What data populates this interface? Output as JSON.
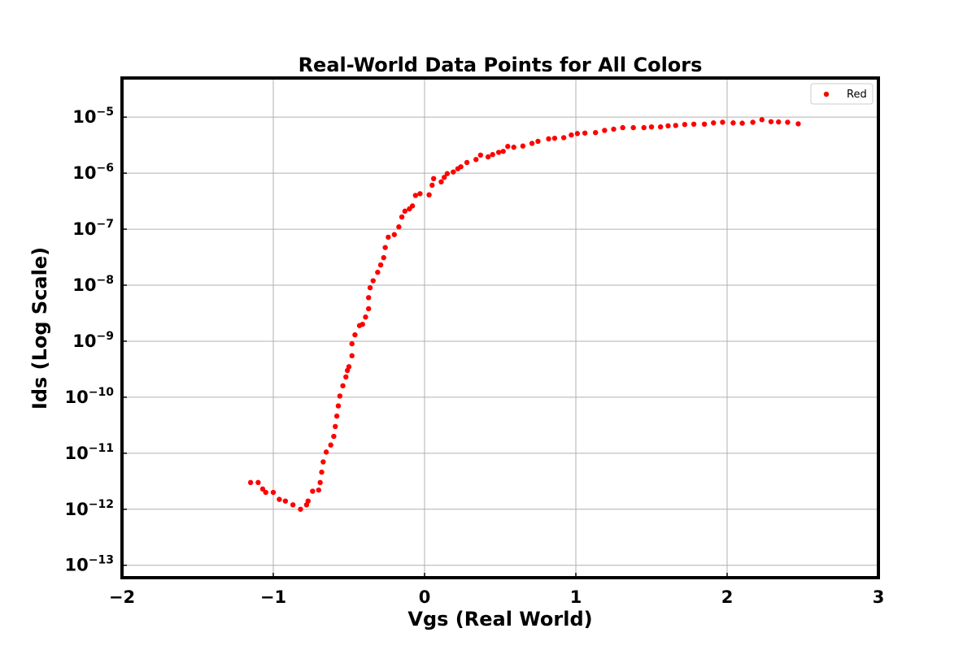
{
  "chart_data": {
    "type": "scatter",
    "title": "Real-World Data Points for All Colors",
    "xlabel": "Vgs (Real World)",
    "ylabel": "Ids (Log Scale)",
    "xlim": [
      -2,
      3
    ],
    "ylim": [
      6e-14,
      5e-05
    ],
    "yscale": "log",
    "grid": true,
    "legend_position": "top-right",
    "x_ticks": [
      -2,
      -1,
      0,
      1,
      2,
      3
    ],
    "x_tick_labels": [
      "−2",
      "−1",
      "0",
      "1",
      "2",
      "3"
    ],
    "y_ticks": [
      {
        "value": 1e-13,
        "base": "10",
        "exp": "−13"
      },
      {
        "value": 1e-12,
        "base": "10",
        "exp": "−12"
      },
      {
        "value": 1e-11,
        "base": "10",
        "exp": "−11"
      },
      {
        "value": 1e-10,
        "base": "10",
        "exp": "−10"
      },
      {
        "value": 1e-09,
        "base": "10",
        "exp": "−9"
      },
      {
        "value": 1e-08,
        "base": "10",
        "exp": "−8"
      },
      {
        "value": 1e-07,
        "base": "10",
        "exp": "−7"
      },
      {
        "value": 1e-06,
        "base": "10",
        "exp": "−6"
      },
      {
        "value": 1e-05,
        "base": "10",
        "exp": "−5"
      }
    ],
    "series": [
      {
        "name": "Red",
        "color": "#ff0000",
        "points": [
          [
            -1.15,
            3e-12
          ],
          [
            -1.1,
            3e-12
          ],
          [
            -1.07,
            2.3e-12
          ],
          [
            -1.05,
            2e-12
          ],
          [
            -1.0,
            2e-12
          ],
          [
            -0.96,
            1.5e-12
          ],
          [
            -0.92,
            1.4e-12
          ],
          [
            -0.87,
            1.2e-12
          ],
          [
            -0.82,
            1e-12
          ],
          [
            -0.78,
            1.2e-12
          ],
          [
            -0.77,
            1.4e-12
          ],
          [
            -0.74,
            2.1e-12
          ],
          [
            -0.7,
            2.2e-12
          ],
          [
            -0.69,
            3e-12
          ],
          [
            -0.68,
            4.6e-12
          ],
          [
            -0.67,
            7e-12
          ],
          [
            -0.65,
            1.05e-11
          ],
          [
            -0.62,
            1.4e-11
          ],
          [
            -0.6,
            2e-11
          ],
          [
            -0.59,
            3e-11
          ],
          [
            -0.58,
            4.6e-11
          ],
          [
            -0.57,
            7e-11
          ],
          [
            -0.56,
            1.05e-10
          ],
          [
            -0.54,
            1.6e-10
          ],
          [
            -0.52,
            2.3e-10
          ],
          [
            -0.51,
            3e-10
          ],
          [
            -0.5,
            3.5e-10
          ],
          [
            -0.48,
            5.5e-10
          ],
          [
            -0.48,
            9e-10
          ],
          [
            -0.46,
            1.3e-09
          ],
          [
            -0.43,
            1.9e-09
          ],
          [
            -0.41,
            2e-09
          ],
          [
            -0.39,
            2.7e-09
          ],
          [
            -0.37,
            3.8e-09
          ],
          [
            -0.37,
            6e-09
          ],
          [
            -0.36,
            9e-09
          ],
          [
            -0.34,
            1.2e-08
          ],
          [
            -0.31,
            1.7e-08
          ],
          [
            -0.29,
            2.3e-08
          ],
          [
            -0.27,
            3.1e-08
          ],
          [
            -0.26,
            4.7e-08
          ],
          [
            -0.24,
            7.2e-08
          ],
          [
            -0.2,
            8e-08
          ],
          [
            -0.17,
            1.1e-07
          ],
          [
            -0.15,
            1.65e-07
          ],
          [
            -0.13,
            2.1e-07
          ],
          [
            -0.1,
            2.3e-07
          ],
          [
            -0.08,
            2.6e-07
          ],
          [
            -0.06,
            4e-07
          ],
          [
            -0.03,
            4.3e-07
          ],
          [
            0.03,
            4.1e-07
          ],
          [
            0.05,
            6.1e-07
          ],
          [
            0.06,
            8e-07
          ],
          [
            0.11,
            7e-07
          ],
          [
            0.13,
            8.4e-07
          ],
          [
            0.15,
            9.8e-07
          ],
          [
            0.19,
            1.05e-06
          ],
          [
            0.22,
            1.2e-06
          ],
          [
            0.24,
            1.3e-06
          ],
          [
            0.28,
            1.55e-06
          ],
          [
            0.34,
            1.75e-06
          ],
          [
            0.37,
            2.1e-06
          ],
          [
            0.42,
            1.95e-06
          ],
          [
            0.45,
            2.15e-06
          ],
          [
            0.49,
            2.35e-06
          ],
          [
            0.52,
            2.45e-06
          ],
          [
            0.55,
            3e-06
          ],
          [
            0.59,
            2.9e-06
          ],
          [
            0.65,
            3.05e-06
          ],
          [
            0.71,
            3.4e-06
          ],
          [
            0.75,
            3.7e-06
          ],
          [
            0.82,
            4.1e-06
          ],
          [
            0.86,
            4.2e-06
          ],
          [
            0.92,
            4.3e-06
          ],
          [
            0.97,
            4.8e-06
          ],
          [
            1.01,
            5.1e-06
          ],
          [
            1.06,
            5.2e-06
          ],
          [
            1.13,
            5.3e-06
          ],
          [
            1.19,
            5.8e-06
          ],
          [
            1.25,
            6.1e-06
          ],
          [
            1.31,
            6.5e-06
          ],
          [
            1.38,
            6.5e-06
          ],
          [
            1.45,
            6.5e-06
          ],
          [
            1.5,
            6.7e-06
          ],
          [
            1.56,
            6.7e-06
          ],
          [
            1.61,
            7e-06
          ],
          [
            1.66,
            7.1e-06
          ],
          [
            1.72,
            7.4e-06
          ],
          [
            1.78,
            7.5e-06
          ],
          [
            1.85,
            7.5e-06
          ],
          [
            1.91,
            7.9e-06
          ],
          [
            1.97,
            8.1e-06
          ],
          [
            2.04,
            7.9e-06
          ],
          [
            2.1,
            7.8e-06
          ],
          [
            2.17,
            8.1e-06
          ],
          [
            2.23,
            9e-06
          ],
          [
            2.29,
            8.3e-06
          ],
          [
            2.34,
            8.2e-06
          ],
          [
            2.4,
            8.1e-06
          ],
          [
            2.47,
            7.6e-06
          ]
        ]
      }
    ]
  }
}
